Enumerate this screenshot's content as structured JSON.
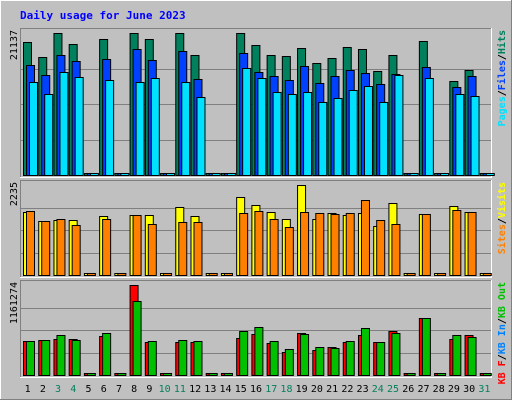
{
  "chart_data": {
    "type": "bar",
    "title": "Daily usage for June 2023",
    "categories": [
      "1",
      "2",
      "3",
      "4",
      "5",
      "6",
      "7",
      "8",
      "9",
      "10",
      "11",
      "12",
      "13",
      "14",
      "15",
      "16",
      "17",
      "18",
      "19",
      "20",
      "21",
      "22",
      "23",
      "24",
      "25",
      "26",
      "27",
      "28",
      "29",
      "30",
      "31"
    ],
    "weekend_days": [
      3,
      4,
      10,
      11,
      17,
      18,
      24,
      25,
      31
    ],
    "panels": [
      {
        "id": "hits",
        "ylabel_max": "21137",
        "ymax": 21137,
        "legend": [
          {
            "label": "Pages",
            "color": "#00e0ff"
          },
          {
            "label": "Files",
            "color": "#0040ff"
          },
          {
            "label": "Hits",
            "color": "#00805c"
          }
        ],
        "separators": [
          "/",
          "/"
        ],
        "series": [
          {
            "name": "Hits",
            "color": "#00805c",
            "values": [
              19800,
              17500,
              21137,
              19500,
              0,
              20200,
              0,
              21137,
              20300,
              0,
              21137,
              17900,
              0,
              0,
              21137,
              19300,
              17800,
              17700,
              18900,
              16700,
              17400,
              19000,
              18800,
              15500,
              17800,
              0,
              20000,
              0,
              14000,
              15700,
              0
            ]
          },
          {
            "name": "Files",
            "color": "#0040ff",
            "values": [
              16400,
              14900,
              17800,
              17000,
              0,
              17300,
              0,
              18800,
              17100,
              0,
              18500,
              14300,
              0,
              0,
              18100,
              15400,
              14700,
              14200,
              16200,
              13700,
              14800,
              15700,
              15200,
              13600,
              15000,
              0,
              16100,
              0,
              13100,
              14700,
              0
            ]
          },
          {
            "name": "Pages",
            "color": "#00e0ff",
            "values": [
              13800,
              12000,
              15400,
              14600,
              0,
              14200,
              0,
              13800,
              14400,
              0,
              13800,
              11600,
              0,
              0,
              16000,
              14500,
              12400,
              12000,
              12300,
              10800,
              11500,
              12600,
              13200,
              10900,
              14900,
              0,
              14500,
              0,
              12100,
              11700,
              0
            ]
          }
        ]
      },
      {
        "id": "visits",
        "ylabel_max": "2235",
        "ymax": 2235,
        "legend": [
          {
            "label": "Sites",
            "color": "#ff8000"
          },
          {
            "label": "Visits",
            "color": "#ffff00"
          }
        ],
        "separators": [
          "/"
        ],
        "series": [
          {
            "name": "Visits",
            "color": "#ffff00",
            "values": [
              1570,
              1330,
              1360,
              1360,
              0,
              1470,
              0,
              1500,
              1500,
              0,
              1680,
              1460,
              0,
              0,
              1930,
              1730,
              1560,
              1390,
              2235,
              1390,
              1530,
              1500,
              1550,
              1210,
              1790,
              0,
              1510,
              0,
              1720,
              1560,
              0
            ]
          },
          {
            "name": "Sites",
            "color": "#ff8000",
            "values": [
              1600,
              1330,
              1390,
              1240,
              0,
              1380,
              0,
              1490,
              1270,
              0,
              1320,
              1320,
              0,
              0,
              1550,
              1590,
              1380,
              1200,
              1560,
              1540,
              1520,
              1530,
              1860,
              1370,
              1270,
              0,
              1510,
              0,
              1620,
              1570,
              0
            ]
          }
        ]
      },
      {
        "id": "kbytes",
        "ylabel_max": "1161274",
        "ymax": 1161274,
        "legend": [
          {
            "label": "KB F",
            "color": "#ff0000"
          },
          {
            "label": "KB In",
            "color": "#0080ff"
          },
          {
            "label": "KB Out",
            "color": "#00c000"
          }
        ],
        "separators": [
          "/",
          "/"
        ],
        "series": [
          {
            "name": "KB F",
            "color": "#ff0000",
            "values": [
              440000,
              450000,
              460000,
              460000,
              0,
              500000,
              0,
              1161274,
              430000,
              0,
              430000,
              430000,
              0,
              0,
              480000,
              530000,
              410000,
              300000,
              540000,
              320000,
              360000,
              420000,
              520000,
              420000,
              570000,
              0,
              730000,
              0,
              470000,
              510000,
              0
            ]
          },
          {
            "name": "KB Out",
            "color": "#00c000",
            "values": [
              445000,
              455000,
              520000,
              450000,
              0,
              545000,
              0,
              950000,
              445000,
              0,
              450000,
              440000,
              0,
              0,
              570000,
              620000,
              440000,
              340000,
              530000,
              360000,
              350000,
              440000,
              610000,
              420000,
              545000,
              0,
              740000,
              0,
              520000,
              490000,
              0
            ]
          }
        ]
      }
    ]
  }
}
